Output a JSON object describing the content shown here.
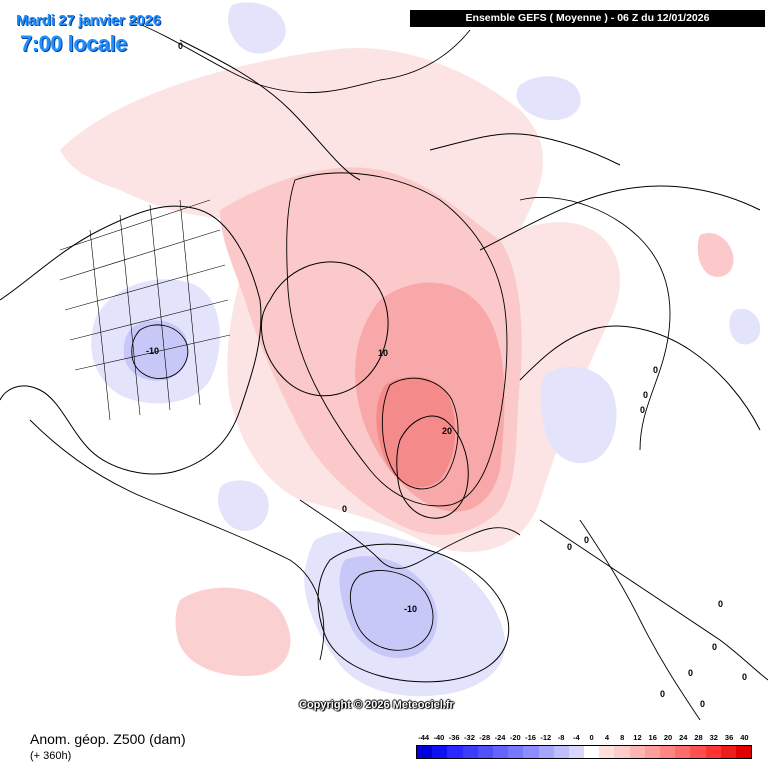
{
  "header": {
    "date": "Mardi 27 janvier 2026",
    "time": "7:00 locale",
    "run": "Ensemble GEFS  ( Moyenne )  -  06 Z du 12/01/2026"
  },
  "footer": {
    "copyright": "Copyright © 2026 Meteociel.fr",
    "parameter": "Anom. géop. Z500 (dam)",
    "lead_time": "(+ 360h)"
  },
  "legend": {
    "labels": [
      "-44",
      "-40",
      "-36",
      "-32",
      "-28",
      "-24",
      "-20",
      "-16",
      "-12",
      "-8",
      "-4",
      "0",
      "4",
      "8",
      "12",
      "16",
      "20",
      "24",
      "28",
      "32",
      "36",
      "40"
    ],
    "colors": [
      "#0000e0",
      "#1010f0",
      "#2828ff",
      "#3c3cff",
      "#5050ff",
      "#6464ff",
      "#7878ff",
      "#8c8cff",
      "#a6a6ff",
      "#bebeff",
      "#d8d8ff",
      "#ffffff",
      "#ffe0e0",
      "#ffcccc",
      "#ffb4b4",
      "#ff9c9c",
      "#ff8484",
      "#ff6c6c",
      "#ff5050",
      "#ff3434",
      "#f01c1c",
      "#e00000"
    ]
  },
  "map": {
    "projection": "polar-stereographic",
    "shading": {
      "positive_light": "#fce4e4",
      "positive_mid": "#fbc9c9",
      "positive_strong": "#f8a8a8",
      "positive_core": "#f58a8a",
      "negative_light": "#e3e3fb",
      "negative_mid": "#c8c8f8",
      "negative_strong": "#b6b6f2"
    },
    "contour_labels": [
      "0",
      "0",
      "0",
      "0",
      "0",
      "0",
      "0",
      "0",
      "0",
      "0",
      "0",
      "0",
      "0",
      "10",
      "20",
      "-10",
      "-10"
    ]
  }
}
